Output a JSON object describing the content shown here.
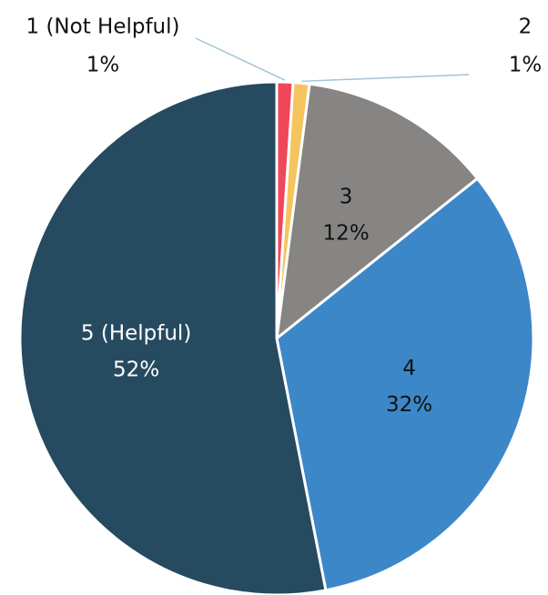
{
  "chart_data": {
    "type": "pie",
    "categories": [
      "1 (Not Helpful)",
      "2",
      "3",
      "4",
      "5 (Helpful)"
    ],
    "values": [
      1,
      1,
      12,
      32,
      52
    ],
    "value_labels": [
      "1%",
      "1%",
      "12%",
      "32%",
      "52%"
    ],
    "colors": [
      "#f0465a",
      "#f5c45e",
      "#868583",
      "#3c87c8",
      "#264a5f"
    ]
  }
}
